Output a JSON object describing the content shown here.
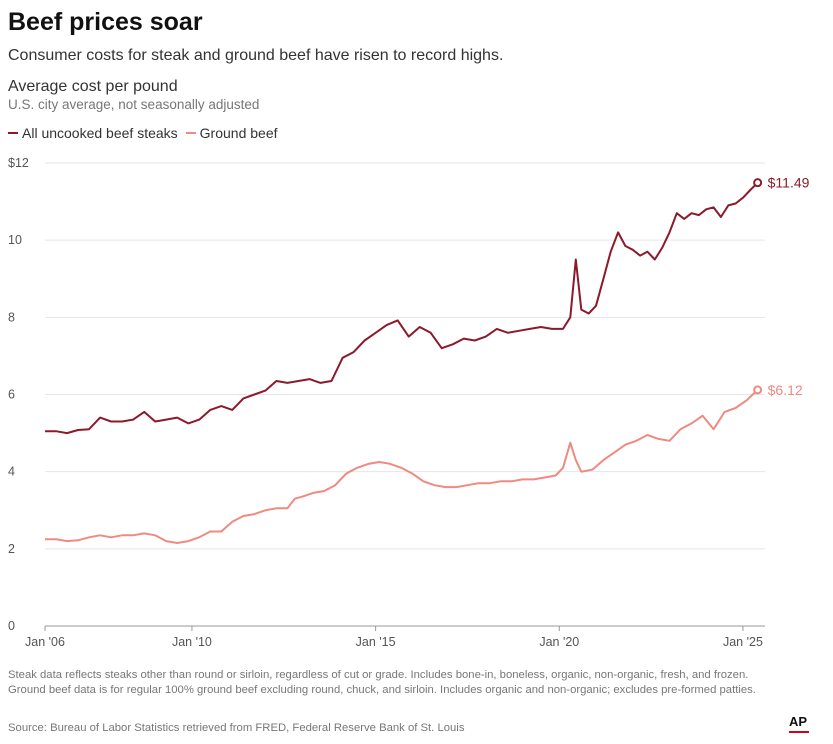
{
  "title": "Beef prices soar",
  "subtitle": "Consumer costs for steak and ground beef have risen to record highs.",
  "chart_label": "Average cost per pound",
  "chart_sublabel": "U.S. city average, not seasonally adjusted",
  "note": "Steak data reflects steaks other than round or sirloin, regardless of cut or grade. Includes bone-in, boneless, organic, non-organic, fresh, and frozen. Ground beef data is for regular 100% ground beef excluding round, chuck, and sirloin. Includes organic and non-organic; excludes pre-formed patties.",
  "source": "Source: Bureau of Labor Statistics retrieved from FRED, Federal Reserve Bank of St. Louis",
  "logo_text": "AP",
  "colors": {
    "steak": "#8b1a2b",
    "ground": "#f08a80",
    "grid": "#e6e6e6",
    "axis": "#555555"
  },
  "chart_data": {
    "type": "line",
    "ylim": [
      0,
      12
    ],
    "y_ticks": [
      {
        "value": 0,
        "label": "0"
      },
      {
        "value": 2,
        "label": "2"
      },
      {
        "value": 4,
        "label": "4"
      },
      {
        "value": 6,
        "label": "6"
      },
      {
        "value": 8,
        "label": "8"
      },
      {
        "value": 10,
        "label": "10"
      },
      {
        "value": 12,
        "label": "$12"
      }
    ],
    "x_ticks": [
      {
        "value": 2006.0,
        "label": "Jan '06"
      },
      {
        "value": 2010.0,
        "label": "Jan '10"
      },
      {
        "value": 2015.0,
        "label": "Jan '15"
      },
      {
        "value": 2020.0,
        "label": "Jan '20"
      },
      {
        "value": 2025.0,
        "label": "Jan '25"
      }
    ],
    "xlim": [
      2006.0,
      2025.6
    ],
    "series": [
      {
        "name": "All uncooked beef steaks",
        "end_label": "$11.49",
        "x": [
          2006.0,
          2006.3,
          2006.6,
          2006.9,
          2007.2,
          2007.5,
          2007.8,
          2008.1,
          2008.4,
          2008.7,
          2009.0,
          2009.3,
          2009.6,
          2009.9,
          2010.2,
          2010.5,
          2010.8,
          2011.1,
          2011.4,
          2011.7,
          2012.0,
          2012.3,
          2012.6,
          2012.9,
          2013.2,
          2013.5,
          2013.8,
          2014.1,
          2014.4,
          2014.7,
          2015.0,
          2015.3,
          2015.6,
          2015.9,
          2016.2,
          2016.5,
          2016.8,
          2017.1,
          2017.4,
          2017.7,
          2018.0,
          2018.3,
          2018.6,
          2018.9,
          2019.2,
          2019.5,
          2019.8,
          2020.1,
          2020.3,
          2020.45,
          2020.6,
          2020.8,
          2021.0,
          2021.2,
          2021.4,
          2021.6,
          2021.8,
          2022.0,
          2022.2,
          2022.4,
          2022.6,
          2022.8,
          2023.0,
          2023.2,
          2023.4,
          2023.6,
          2023.8,
          2024.0,
          2024.2,
          2024.4,
          2024.6,
          2024.8,
          2025.0,
          2025.2,
          2025.4
        ],
        "y": [
          5.05,
          5.05,
          5.0,
          5.08,
          5.1,
          5.4,
          5.3,
          5.3,
          5.35,
          5.55,
          5.3,
          5.35,
          5.4,
          5.25,
          5.35,
          5.6,
          5.7,
          5.6,
          5.9,
          6.0,
          6.1,
          6.35,
          6.3,
          6.35,
          6.4,
          6.3,
          6.35,
          6.95,
          7.1,
          7.4,
          7.6,
          7.8,
          7.92,
          7.5,
          7.75,
          7.6,
          7.2,
          7.3,
          7.45,
          7.4,
          7.5,
          7.7,
          7.6,
          7.65,
          7.7,
          7.75,
          7.7,
          7.7,
          8.0,
          9.5,
          8.2,
          8.1,
          8.3,
          9.0,
          9.7,
          10.2,
          9.85,
          9.75,
          9.6,
          9.7,
          9.5,
          9.8,
          10.2,
          10.7,
          10.55,
          10.7,
          10.65,
          10.8,
          10.85,
          10.6,
          10.9,
          10.95,
          11.1,
          11.3,
          11.49
        ]
      },
      {
        "name": "Ground beef",
        "end_label": "$6.12",
        "x": [
          2006.0,
          2006.3,
          2006.6,
          2006.9,
          2007.2,
          2007.5,
          2007.8,
          2008.1,
          2008.4,
          2008.7,
          2009.0,
          2009.3,
          2009.6,
          2009.9,
          2010.2,
          2010.5,
          2010.8,
          2011.1,
          2011.4,
          2011.7,
          2012.0,
          2012.3,
          2012.6,
          2012.8,
          2013.0,
          2013.3,
          2013.6,
          2013.9,
          2014.2,
          2014.5,
          2014.8,
          2015.1,
          2015.4,
          2015.7,
          2016.0,
          2016.3,
          2016.6,
          2016.9,
          2017.2,
          2017.5,
          2017.8,
          2018.1,
          2018.4,
          2018.7,
          2019.0,
          2019.3,
          2019.6,
          2019.9,
          2020.1,
          2020.3,
          2020.45,
          2020.6,
          2020.9,
          2021.2,
          2021.5,
          2021.8,
          2022.1,
          2022.4,
          2022.7,
          2023.0,
          2023.3,
          2023.6,
          2023.9,
          2024.2,
          2024.5,
          2024.8,
          2025.1,
          2025.4
        ],
        "y": [
          2.25,
          2.25,
          2.2,
          2.22,
          2.3,
          2.35,
          2.3,
          2.35,
          2.35,
          2.4,
          2.35,
          2.2,
          2.15,
          2.2,
          2.3,
          2.45,
          2.45,
          2.7,
          2.85,
          2.9,
          3.0,
          3.05,
          3.05,
          3.3,
          3.35,
          3.45,
          3.5,
          3.65,
          3.95,
          4.1,
          4.2,
          4.25,
          4.2,
          4.1,
          3.95,
          3.75,
          3.65,
          3.6,
          3.6,
          3.65,
          3.7,
          3.7,
          3.75,
          3.75,
          3.8,
          3.8,
          3.85,
          3.9,
          4.1,
          4.75,
          4.3,
          4.0,
          4.05,
          4.3,
          4.5,
          4.7,
          4.8,
          4.95,
          4.85,
          4.8,
          5.1,
          5.25,
          5.45,
          5.1,
          5.55,
          5.65,
          5.85,
          6.12
        ]
      }
    ]
  }
}
